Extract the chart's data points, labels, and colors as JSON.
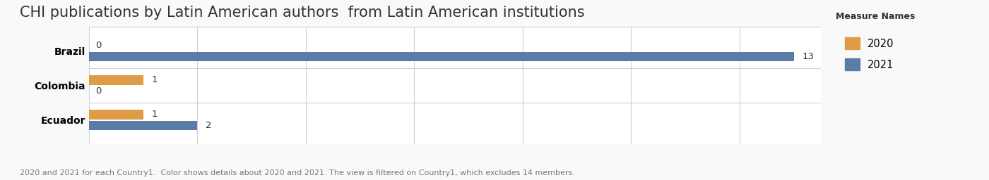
{
  "title": "CHI publications by Latin American authors  from Latin American institutions",
  "categories": [
    "Brazil",
    "Colombia",
    "Ecuador"
  ],
  "values_2020": [
    0,
    1,
    1
  ],
  "values_2021": [
    13,
    0,
    2
  ],
  "color_2020": "#e09c45",
  "color_2021": "#5a7da8",
  "legend_title": "Measure Names",
  "legend_labels": [
    "2020",
    "2021"
  ],
  "footnote": "2020 and 2021 for each Country1.  Color shows details about 2020 and 2021. The view is filtered on Country1, which excludes 14 members.",
  "xlim": [
    0,
    13.5
  ],
  "bar_height": 0.28,
  "background_color": "#f9f9f9",
  "plot_bg_color": "#ffffff",
  "grid_color": "#d0d0d0",
  "title_fontsize": 15,
  "label_fontsize": 9.5,
  "tick_fontsize": 10,
  "footnote_fontsize": 8
}
